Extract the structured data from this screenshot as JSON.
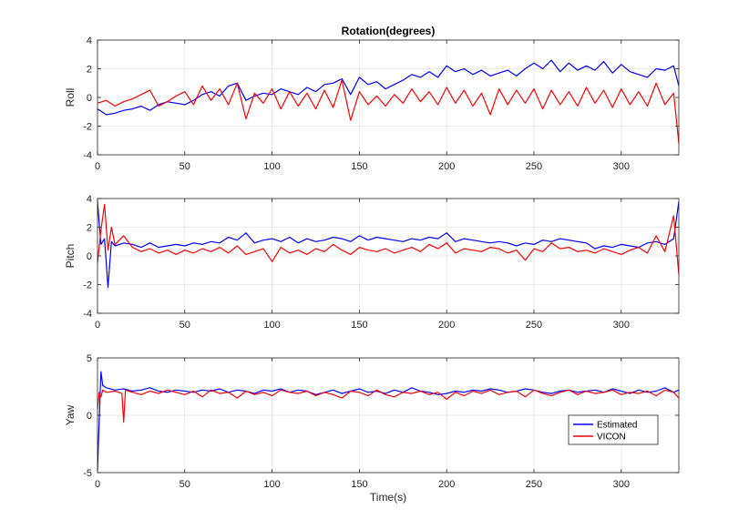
{
  "chart_data": [
    {
      "type": "line",
      "title": "Rotation(degrees)",
      "ylabel": "Roll",
      "xlabel": "",
      "xlim": [
        0,
        333
      ],
      "ylim": [
        -4,
        4
      ],
      "xticks": [
        0,
        50,
        100,
        150,
        200,
        250,
        300
      ],
      "yticks": [
        -4,
        -2,
        0,
        2,
        4
      ],
      "grid": true,
      "series": [
        {
          "color": "#0000ff",
          "x": [
            0,
            5,
            10,
            15,
            20,
            25,
            30,
            35,
            40,
            45,
            50,
            55,
            60,
            65,
            70,
            75,
            80,
            85,
            90,
            95,
            100,
            105,
            110,
            115,
            120,
            125,
            130,
            135,
            140,
            145,
            150,
            155,
            160,
            165,
            170,
            175,
            180,
            185,
            190,
            195,
            200,
            205,
            210,
            215,
            220,
            225,
            230,
            235,
            240,
            245,
            250,
            255,
            260,
            265,
            270,
            275,
            280,
            285,
            290,
            295,
            300,
            305,
            310,
            315,
            320,
            325,
            330,
            333
          ],
          "values": [
            -0.8,
            -1.2,
            -1.1,
            -0.9,
            -0.8,
            -0.6,
            -0.9,
            -0.5,
            -0.3,
            -0.4,
            -0.5,
            -0.2,
            0.2,
            0.4,
            0.1,
            0.8,
            1.0,
            -0.2,
            0.1,
            0.3,
            0.2,
            0.6,
            0.4,
            0.2,
            0.7,
            0.4,
            0.9,
            1.0,
            1.3,
            0.2,
            1.4,
            0.9,
            1.1,
            0.6,
            0.9,
            1.2,
            1.6,
            1.4,
            1.8,
            1.4,
            2.2,
            1.8,
            2.0,
            1.6,
            1.9,
            1.5,
            1.7,
            1.9,
            1.5,
            2.0,
            2.4,
            2.0,
            2.6,
            1.8,
            2.4,
            1.9,
            2.2,
            1.9,
            2.5,
            1.7,
            2.3,
            1.8,
            1.6,
            1.4,
            2.0,
            1.9,
            2.2,
            0.8
          ]
        },
        {
          "color": "#ff0000",
          "x": [
            0,
            5,
            10,
            15,
            20,
            25,
            30,
            35,
            40,
            45,
            50,
            55,
            60,
            65,
            70,
            75,
            80,
            85,
            90,
            95,
            100,
            105,
            110,
            115,
            120,
            125,
            130,
            135,
            140,
            145,
            150,
            155,
            160,
            165,
            170,
            175,
            180,
            185,
            190,
            195,
            200,
            205,
            210,
            215,
            220,
            225,
            230,
            235,
            240,
            245,
            250,
            255,
            260,
            265,
            270,
            275,
            280,
            285,
            290,
            295,
            300,
            305,
            310,
            315,
            320,
            325,
            330,
            333
          ],
          "values": [
            -0.4,
            -0.2,
            -0.6,
            -0.3,
            -0.1,
            0.2,
            0.5,
            -0.6,
            -0.3,
            0.1,
            0.4,
            -0.5,
            0.8,
            -0.2,
            0.6,
            -0.5,
            1.0,
            -1.5,
            0.3,
            -0.4,
            0.6,
            -0.8,
            0.4,
            -0.6,
            0.3,
            -0.8,
            0.5,
            -0.7,
            1.2,
            -1.6,
            0.4,
            -0.5,
            0.1,
            -0.6,
            0.2,
            -0.4,
            0.6,
            -0.3,
            0.4,
            -0.5,
            0.7,
            -0.4,
            0.5,
            -0.6,
            0.3,
            -1.2,
            0.6,
            -0.5,
            0.5,
            -0.4,
            0.6,
            -0.8,
            0.5,
            -0.5,
            0.4,
            -0.6,
            0.7,
            -0.4,
            0.5,
            -0.7,
            0.6,
            -0.5,
            0.4,
            -0.6,
            1.0,
            -0.5,
            0.3,
            -3.2
          ]
        }
      ]
    },
    {
      "type": "line",
      "title": "",
      "ylabel": "Pitch",
      "xlabel": "",
      "xlim": [
        0,
        333
      ],
      "ylim": [
        -4,
        4
      ],
      "xticks": [
        0,
        50,
        100,
        150,
        200,
        250,
        300
      ],
      "yticks": [
        -4,
        -2,
        0,
        2,
        4
      ],
      "grid": true,
      "series": [
        {
          "color": "#0000ff",
          "x": [
            0,
            2,
            4,
            6,
            8,
            10,
            15,
            20,
            25,
            30,
            35,
            40,
            45,
            50,
            55,
            60,
            65,
            70,
            75,
            80,
            85,
            90,
            95,
            100,
            105,
            110,
            115,
            120,
            125,
            130,
            135,
            140,
            145,
            150,
            155,
            160,
            165,
            170,
            175,
            180,
            185,
            190,
            195,
            200,
            205,
            210,
            215,
            220,
            225,
            230,
            235,
            240,
            245,
            250,
            255,
            260,
            265,
            270,
            275,
            280,
            285,
            290,
            295,
            300,
            305,
            310,
            315,
            320,
            325,
            330,
            333
          ],
          "values": [
            3.8,
            0.8,
            1.2,
            -2.2,
            1.0,
            0.7,
            0.9,
            0.8,
            0.6,
            0.9,
            0.6,
            0.7,
            0.8,
            0.7,
            0.9,
            0.8,
            1.0,
            0.9,
            1.3,
            1.1,
            1.6,
            0.9,
            1.1,
            1.2,
            1.0,
            1.3,
            0.9,
            1.2,
            1.0,
            1.1,
            1.3,
            1.2,
            1.0,
            1.4,
            1.1,
            1.3,
            1.2,
            1.1,
            1.0,
            1.2,
            1.1,
            1.3,
            1.2,
            1.6,
            1.0,
            1.2,
            1.1,
            1.0,
            0.9,
            1.0,
            0.9,
            0.7,
            0.9,
            0.8,
            1.1,
            1.0,
            1.2,
            1.1,
            1.0,
            0.9,
            0.5,
            0.7,
            0.6,
            0.8,
            0.7,
            0.6,
            0.9,
            1.0,
            0.8,
            1.2,
            3.8
          ]
        },
        {
          "color": "#ff0000",
          "x": [
            0,
            2,
            4,
            6,
            8,
            10,
            15,
            20,
            25,
            30,
            35,
            40,
            45,
            50,
            55,
            60,
            65,
            70,
            75,
            80,
            85,
            90,
            95,
            100,
            105,
            110,
            115,
            120,
            125,
            130,
            135,
            140,
            145,
            150,
            155,
            160,
            165,
            170,
            175,
            180,
            185,
            190,
            195,
            200,
            205,
            210,
            215,
            220,
            225,
            230,
            235,
            240,
            245,
            250,
            255,
            260,
            265,
            270,
            275,
            280,
            285,
            290,
            295,
            300,
            305,
            310,
            315,
            320,
            325,
            330,
            333
          ],
          "values": [
            -0.5,
            1.8,
            3.6,
            0.4,
            2.0,
            0.8,
            1.4,
            0.6,
            0.3,
            0.5,
            0.2,
            0.4,
            0.1,
            0.4,
            0.2,
            0.5,
            0.3,
            0.6,
            0.2,
            0.7,
            0.1,
            0.3,
            0.5,
            -0.4,
            0.6,
            0.2,
            0.4,
            0.1,
            0.5,
            0.3,
            0.8,
            0.4,
            0.1,
            0.6,
            0.4,
            0.3,
            0.5,
            0.2,
            0.4,
            0.6,
            0.3,
            0.8,
            0.5,
            0.9,
            0.2,
            0.5,
            0.4,
            0.3,
            0.6,
            0.5,
            0.2,
            0.4,
            -0.3,
            0.5,
            0.3,
            0.9,
            0.5,
            0.6,
            0.3,
            0.4,
            0.2,
            0.5,
            0.3,
            0.1,
            0.4,
            0.6,
            0.2,
            1.4,
            0.3,
            2.8,
            -1.3
          ]
        }
      ]
    },
    {
      "type": "line",
      "title": "",
      "ylabel": "Yaw",
      "xlabel": "Time(s)",
      "xlim": [
        0,
        333
      ],
      "ylim": [
        -5,
        5
      ],
      "xticks": [
        0,
        50,
        100,
        150,
        200,
        250,
        300
      ],
      "yticks": [
        -5,
        0,
        5
      ],
      "grid": true,
      "legend": {
        "position": "bottom-right",
        "entries": [
          "Estimated",
          "VICON"
        ]
      },
      "series": [
        {
          "name": "Estimated",
          "color": "#0000ff",
          "x": [
            0,
            1,
            2,
            3,
            5,
            10,
            15,
            20,
            25,
            30,
            35,
            40,
            45,
            50,
            55,
            60,
            65,
            70,
            75,
            80,
            85,
            90,
            95,
            100,
            105,
            110,
            115,
            120,
            125,
            130,
            135,
            140,
            145,
            150,
            155,
            160,
            165,
            170,
            175,
            180,
            185,
            190,
            195,
            200,
            205,
            210,
            215,
            220,
            225,
            230,
            235,
            240,
            245,
            250,
            255,
            260,
            265,
            270,
            275,
            280,
            285,
            290,
            295,
            300,
            305,
            310,
            315,
            320,
            325,
            330,
            333
          ],
          "values": [
            -4.8,
            -0.5,
            3.8,
            2.6,
            2.4,
            2.2,
            2.3,
            2.1,
            2.2,
            2.4,
            2.1,
            2.0,
            2.2,
            2.1,
            2.0,
            2.2,
            2.1,
            2.3,
            2.0,
            2.2,
            2.1,
            1.9,
            2.2,
            2.1,
            2.3,
            2.0,
            2.2,
            2.1,
            1.8,
            2.0,
            2.2,
            1.9,
            2.1,
            2.3,
            2.0,
            2.1,
            1.9,
            2.2,
            2.0,
            2.4,
            2.1,
            2.0,
            1.8,
            1.9,
            2.1,
            2.0,
            2.2,
            2.1,
            2.3,
            2.2,
            2.0,
            2.1,
            2.3,
            2.2,
            2.0,
            1.9,
            2.1,
            2.2,
            2.0,
            2.1,
            2.2,
            2.0,
            2.3,
            2.1,
            1.9,
            2.2,
            2.0,
            2.1,
            2.4,
            2.0,
            2.2
          ]
        },
        {
          "name": "VICON",
          "color": "#ff0000",
          "x": [
            0,
            1,
            2,
            3,
            5,
            10,
            14,
            15,
            16,
            20,
            25,
            30,
            35,
            40,
            45,
            50,
            55,
            60,
            65,
            70,
            75,
            80,
            85,
            90,
            95,
            100,
            105,
            110,
            115,
            120,
            125,
            130,
            135,
            140,
            145,
            150,
            155,
            160,
            165,
            170,
            175,
            180,
            185,
            190,
            195,
            200,
            205,
            210,
            215,
            220,
            225,
            230,
            235,
            240,
            245,
            250,
            255,
            260,
            265,
            270,
            275,
            280,
            285,
            290,
            295,
            300,
            305,
            310,
            315,
            320,
            325,
            330,
            333
          ],
          "values": [
            0.5,
            2.0,
            1.6,
            2.2,
            2.0,
            2.1,
            1.9,
            -0.6,
            2.2,
            2.0,
            1.8,
            2.1,
            1.9,
            2.2,
            2.0,
            1.8,
            2.1,
            1.6,
            2.2,
            1.9,
            2.0,
            1.5,
            2.1,
            1.8,
            2.0,
            1.7,
            2.2,
            2.0,
            1.9,
            2.1,
            1.7,
            2.0,
            1.8,
            1.5,
            2.1,
            2.0,
            1.7,
            2.2,
            1.8,
            1.6,
            2.0,
            1.9,
            2.1,
            1.8,
            2.0,
            1.4,
            2.0,
            1.7,
            2.1,
            1.9,
            2.2,
            1.8,
            2.0,
            2.1,
            1.6,
            2.2,
            1.9,
            1.7,
            2.0,
            2.2,
            1.8,
            2.1,
            1.9,
            2.0,
            2.2,
            1.8,
            2.0,
            1.9,
            2.1,
            1.7,
            2.2,
            2.0,
            1.5
          ]
        }
      ]
    }
  ]
}
